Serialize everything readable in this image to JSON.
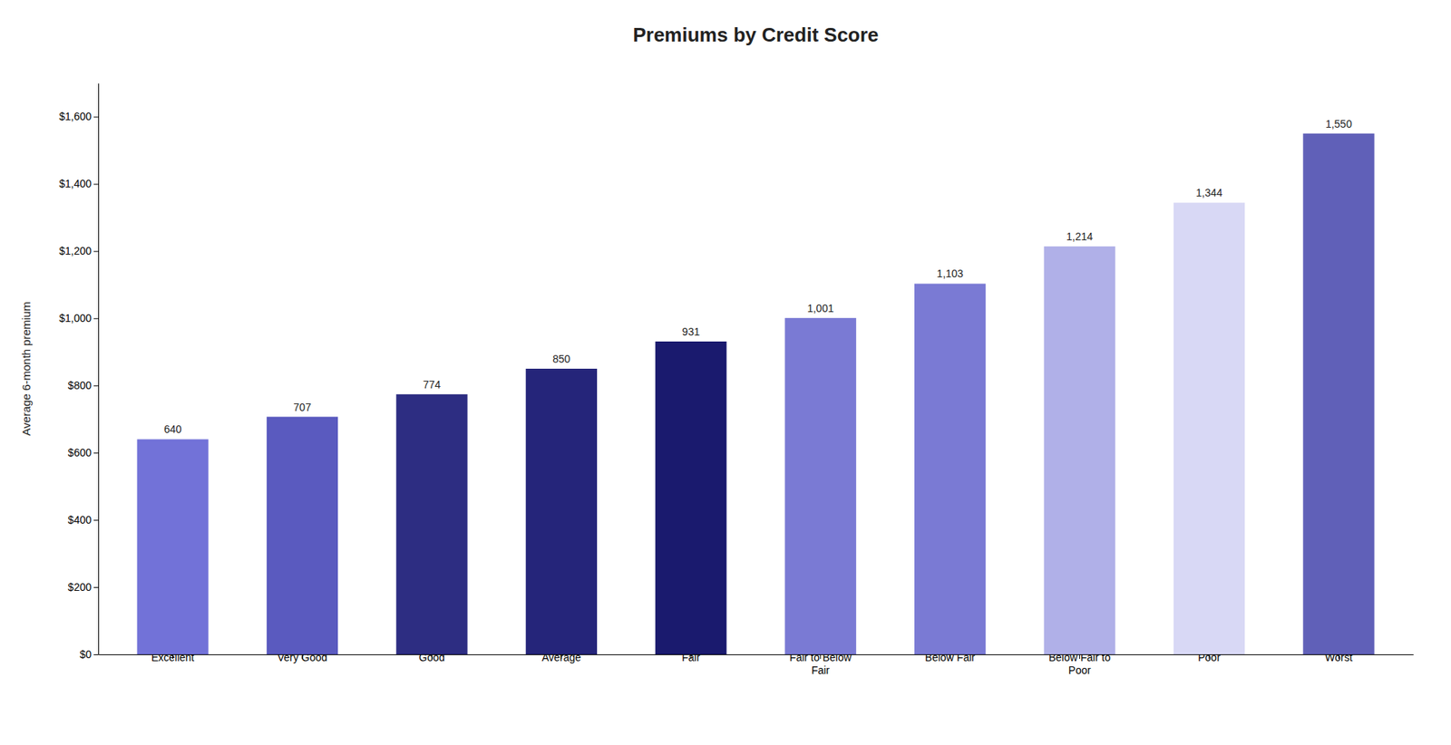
{
  "chart_data": {
    "type": "bar",
    "title": "Premiums by Credit Score",
    "categories": [
      "Excellent",
      "Very Good",
      "Good",
      "Average",
      "Fair",
      "Fair to Below\nFair",
      "Below Fair",
      "Below Fair to\nPoor",
      "Poor",
      "Worst"
    ],
    "values": [
      640,
      707,
      774,
      850,
      931,
      1001,
      1103,
      1214,
      1344,
      1550
    ],
    "value_labels": [
      "640",
      "707",
      "774",
      "850",
      "931",
      "1,001",
      "1,103",
      "1,214",
      "1,344",
      "1,550"
    ],
    "colors": [
      "#7272d8",
      "#5a5abf",
      "#2d2d82",
      "#25257a",
      "#1a1a6e",
      "#7a7ad4",
      "#7a7ad4",
      "#b0b0e8",
      "#d8d8f5",
      "#6060b8"
    ],
    "ylabel": "Average 6-month premium",
    "ylim": [
      0,
      1700
    ],
    "yticks": [
      {
        "value": 0,
        "label": "$0"
      },
      {
        "value": 200,
        "label": "$200"
      },
      {
        "value": 400,
        "label": "$400"
      },
      {
        "value": 600,
        "label": "$600"
      },
      {
        "value": 800,
        "label": "$800"
      },
      {
        "value": 1000,
        "label": "$1,000"
      },
      {
        "value": 1200,
        "label": "$1,200"
      },
      {
        "value": 1400,
        "label": "$1,400"
      },
      {
        "value": 1600,
        "label": "$1,600"
      }
    ],
    "grid": false,
    "data_labels": true
  }
}
